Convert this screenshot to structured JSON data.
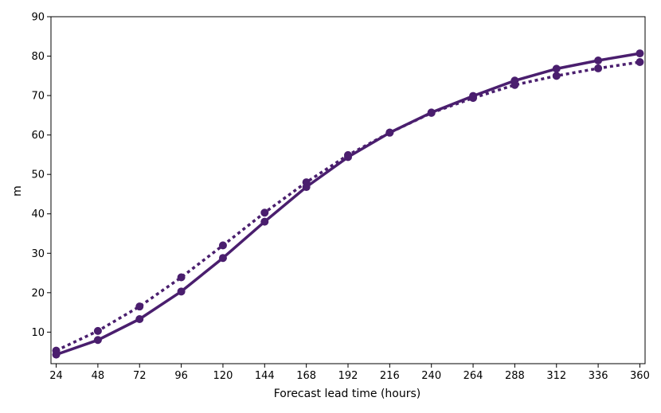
{
  "chart_data": {
    "type": "line",
    "title": "",
    "xlabel": "Forecast lead time (hours)",
    "ylabel": "m",
    "x": [
      24,
      48,
      72,
      96,
      120,
      144,
      168,
      192,
      216,
      240,
      264,
      288,
      312,
      336,
      360
    ],
    "xlim": [
      21,
      363
    ],
    "ylim": [
      2,
      90
    ],
    "xticks": [
      24,
      48,
      72,
      96,
      120,
      144,
      168,
      192,
      216,
      240,
      264,
      288,
      312,
      336,
      360
    ],
    "yticks": [
      10,
      20,
      30,
      40,
      50,
      60,
      70,
      80,
      90
    ],
    "grid": false,
    "legend": "none",
    "series": [
      {
        "style": "solid",
        "color": "#4a1e6e",
        "values": [
          4.3,
          8.0,
          13.3,
          20.3,
          28.8,
          38.0,
          46.8,
          54.4,
          60.6,
          65.7,
          69.9,
          73.8,
          76.8,
          78.9,
          80.7
        ]
      },
      {
        "style": "dotted",
        "color": "#4a1e6e",
        "values": [
          5.3,
          10.3,
          16.5,
          23.9,
          32.0,
          40.3,
          48.0,
          54.9,
          60.6,
          65.6,
          69.4,
          72.7,
          75.0,
          76.9,
          78.5
        ]
      }
    ]
  }
}
